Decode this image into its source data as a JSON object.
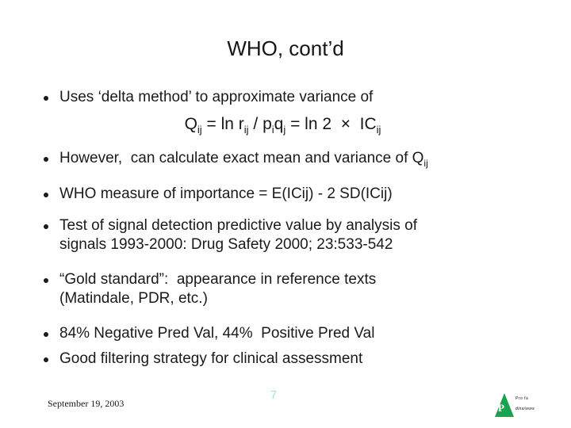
{
  "slide": {
    "title": "WHO, cont’d",
    "bullets": [
      {
        "text": "Uses ‘delta method’ to approximate variance of"
      },
      {
        "text": "However,  can calculate exact mean and variance of Q",
        "sub": "ij"
      },
      {
        "text": "WHO measure of importance = E(ICij) - 2 SD(ICij)"
      },
      {
        "line1": "Test of signal detection predictive value by analysis of",
        "line2": "signals 1993-2000: Drug Safety 2000; 23:533-542"
      },
      {
        "line1": "“Gold standard”:  appearance in reference texts",
        "line2": "(Matindale, PDR, etc.)"
      },
      {
        "text": "84% Negative Pred Val, 44%  Positive Pred Val"
      },
      {
        "text": "Good filtering strategy for clinical assessment"
      }
    ],
    "formula": {
      "p1": "Q",
      "s1": "ij",
      "p2": " = ln r",
      "s2": "ij",
      "p3": " / p",
      "s3": "i",
      "p4": "q",
      "s4": "j",
      "p5": " = ln 2  ×  IC",
      "s5": "ij"
    },
    "footer": {
      "date": "September 19, 2003",
      "slide_number": "7",
      "slide_number_color": "#a8dde9"
    },
    "logo": {
      "letter": "P",
      "line1": "Pro fa",
      "line2": "dina/www",
      "triangle_color": "#1aa34f"
    }
  }
}
